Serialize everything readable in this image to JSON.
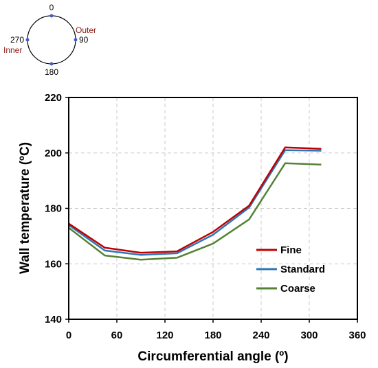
{
  "diagram": {
    "angles": [
      "0",
      "90",
      "180",
      "270"
    ],
    "outer_label": "Outer",
    "inner_label": "Inner",
    "label_color": "#8b1a1a",
    "marker_color": "#4a5bbf"
  },
  "chart_data": {
    "type": "line",
    "title": "",
    "xlabel": "Circumferential angle (º)",
    "ylabel": "Wall temperature (ºC)",
    "xlim": [
      0,
      360
    ],
    "ylim": [
      140,
      220
    ],
    "xticks": [
      "0",
      "60",
      "120",
      "180",
      "240",
      "300",
      "360"
    ],
    "yticks": [
      "140",
      "160",
      "180",
      "200",
      "220"
    ],
    "grid": true,
    "legend_position": "lower-right",
    "x": [
      0,
      45,
      90,
      135,
      180,
      225,
      270,
      315
    ],
    "series": [
      {
        "name": "Fine",
        "color": "#c00000",
        "values": [
          174.5,
          165.8,
          164.0,
          164.5,
          171.5,
          181.0,
          202.0,
          201.5
        ]
      },
      {
        "name": "Standard",
        "color": "#2e75b6",
        "values": [
          174.0,
          164.8,
          163.2,
          163.8,
          170.5,
          180.3,
          201.0,
          200.8
        ]
      },
      {
        "name": "Coarse",
        "color": "#548235",
        "values": [
          173.0,
          163.0,
          161.5,
          162.2,
          167.3,
          176.0,
          196.3,
          195.8
        ]
      }
    ]
  }
}
